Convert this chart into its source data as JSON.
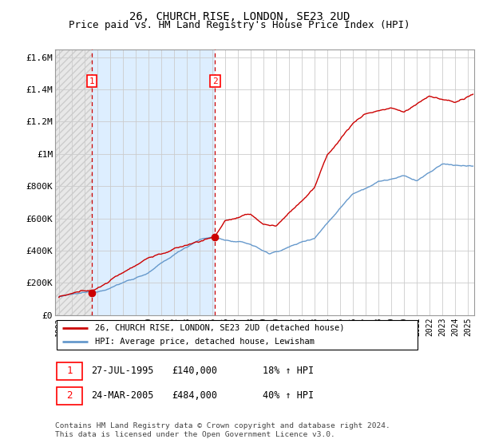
{
  "title": "26, CHURCH RISE, LONDON, SE23 2UD",
  "subtitle": "Price paid vs. HM Land Registry's House Price Index (HPI)",
  "ylabel_ticks": [
    "£0",
    "£200K",
    "£400K",
    "£600K",
    "£800K",
    "£1M",
    "£1.2M",
    "£1.4M",
    "£1.6M"
  ],
  "ytick_values": [
    0,
    200000,
    400000,
    600000,
    800000,
    1000000,
    1200000,
    1400000,
    1600000
  ],
  "ylim": [
    0,
    1650000
  ],
  "xlim_start": 1992.7,
  "xlim_end": 2025.5,
  "purchase1": {
    "year": 1995.57,
    "price": 140000,
    "label": "1"
  },
  "purchase2": {
    "year": 2005.22,
    "price": 484000,
    "label": "2"
  },
  "legend_line1": "26, CHURCH RISE, LONDON, SE23 2UD (detached house)",
  "legend_line2": "HPI: Average price, detached house, Lewisham",
  "table_row1": [
    "1",
    "27-JUL-1995",
    "£140,000",
    "18% ↑ HPI"
  ],
  "table_row2": [
    "2",
    "24-MAR-2005",
    "£484,000",
    "40% ↑ HPI"
  ],
  "footnote": "Contains HM Land Registry data © Crown copyright and database right 2024.\nThis data is licensed under the Open Government Licence v3.0.",
  "hpi_color": "#6699cc",
  "price_color": "#cc0000",
  "vline_color": "#cc0000",
  "shade_color": "#ddeeff",
  "hatch_color": "#cccccc",
  "grid_color": "#cccccc",
  "title_fontsize": 10,
  "subtitle_fontsize": 9
}
